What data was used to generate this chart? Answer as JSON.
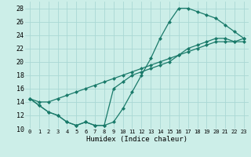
{
  "xlabel": "Humidex (Indice chaleur)",
  "bg_color": "#cceee8",
  "grid_color": "#aad8d4",
  "line_color": "#1a7a6a",
  "xlim": [
    -0.5,
    23.5
  ],
  "ylim": [
    10,
    29
  ],
  "xticks": [
    0,
    1,
    2,
    3,
    4,
    5,
    6,
    7,
    8,
    9,
    10,
    11,
    12,
    13,
    14,
    15,
    16,
    17,
    18,
    19,
    20,
    21,
    22,
    23
  ],
  "yticks": [
    10,
    12,
    14,
    16,
    18,
    20,
    22,
    24,
    26,
    28
  ],
  "curve1_x": [
    0,
    1,
    2,
    3,
    4,
    5,
    6,
    7,
    8,
    9,
    10,
    11,
    12,
    13,
    14,
    15,
    16,
    17,
    18,
    19,
    20,
    21,
    22,
    23
  ],
  "curve1_y": [
    14.5,
    13.5,
    12.5,
    12,
    11,
    10.5,
    11,
    10.5,
    10.5,
    16,
    17,
    18,
    18.5,
    19,
    19.5,
    20,
    21,
    22,
    22.5,
    23,
    23.5,
    23.5,
    23,
    23
  ],
  "curve2_x": [
    0,
    1,
    2,
    3,
    4,
    5,
    6,
    7,
    8,
    9,
    10,
    11,
    12,
    13,
    14,
    15,
    16,
    17,
    18,
    19,
    20,
    21,
    22,
    23
  ],
  "curve2_y": [
    14.5,
    14,
    14,
    14.5,
    15,
    15.5,
    16,
    16.5,
    17,
    17.5,
    18,
    18.5,
    19,
    19.5,
    20,
    20.5,
    21,
    21.5,
    22,
    22.5,
    23,
    23,
    23,
    23.5
  ],
  "curve3_x": [
    0,
    1,
    2,
    3,
    4,
    5,
    6,
    7,
    8,
    9,
    10,
    11,
    12,
    13,
    14,
    15,
    16,
    17,
    18,
    19,
    20,
    21,
    22,
    23
  ],
  "curve3_y": [
    14.5,
    13.5,
    12.5,
    12,
    11,
    10.5,
    11,
    10.5,
    10.5,
    11,
    13,
    15.5,
    18,
    20.5,
    23.5,
    26,
    28,
    28,
    27.5,
    27,
    26.5,
    25.5,
    24.5,
    23.5
  ]
}
